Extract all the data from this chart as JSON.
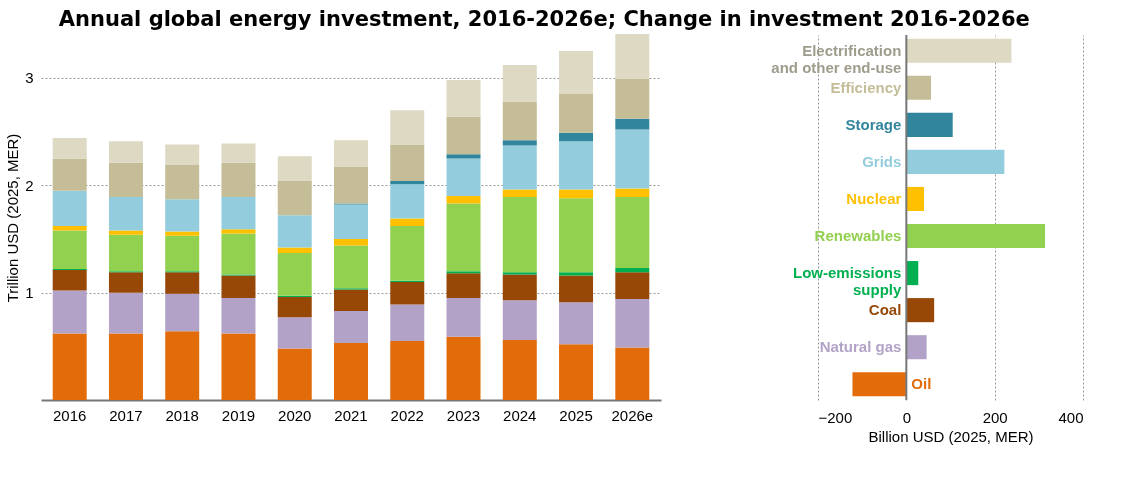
{
  "chart_data": [
    {
      "type": "bar",
      "title": "Annual global energy investment, 2016-2026e; Change in investment 2016-2026e",
      "ylabel": "Trillion USD (2025, MER)",
      "stacked": true,
      "grid": "y",
      "categories": [
        "2016",
        "2017",
        "2018",
        "2019",
        "2020",
        "2021",
        "2022",
        "2023",
        "2024",
        "2025",
        "2026e"
      ],
      "ylim": [
        0,
        3.4
      ],
      "yticks": [
        1,
        2,
        3
      ],
      "series": [
        {
          "color": "#e36c0a",
          "values": [
            0.62,
            0.62,
            0.64,
            0.62,
            0.48,
            0.53,
            0.55,
            0.59,
            0.56,
            0.52,
            0.49
          ]
        },
        {
          "color": "#b3a2c7",
          "values": [
            0.4,
            0.38,
            0.35,
            0.33,
            0.29,
            0.3,
            0.34,
            0.36,
            0.37,
            0.39,
            0.45
          ]
        },
        {
          "color": "#974806",
          "values": [
            0.19,
            0.19,
            0.2,
            0.21,
            0.19,
            0.2,
            0.21,
            0.23,
            0.24,
            0.25,
            0.25
          ]
        },
        {
          "color": "#00b050",
          "values": [
            0.01,
            0.01,
            0.01,
            0.01,
            0.01,
            0.01,
            0.01,
            0.02,
            0.02,
            0.03,
            0.04
          ]
        },
        {
          "color": "#92d050",
          "values": [
            0.36,
            0.34,
            0.33,
            0.38,
            0.4,
            0.4,
            0.51,
            0.63,
            0.7,
            0.69,
            0.66
          ]
        },
        {
          "color": "#ffc000",
          "values": [
            0.04,
            0.04,
            0.04,
            0.04,
            0.05,
            0.06,
            0.07,
            0.07,
            0.07,
            0.08,
            0.08
          ]
        },
        {
          "color": "#93cddd",
          "values": [
            0.33,
            0.31,
            0.3,
            0.3,
            0.3,
            0.32,
            0.32,
            0.35,
            0.41,
            0.45,
            0.55
          ]
        },
        {
          "color": "#31859c",
          "values": [
            0.0,
            0.0,
            0.0,
            0.0,
            0.0,
            0.01,
            0.03,
            0.04,
            0.05,
            0.08,
            0.1
          ]
        },
        {
          "color": "#c4bd97",
          "values": [
            0.3,
            0.32,
            0.32,
            0.32,
            0.32,
            0.34,
            0.34,
            0.35,
            0.36,
            0.36,
            0.37
          ]
        },
        {
          "color": "#ddd9c3",
          "values": [
            0.19,
            0.2,
            0.19,
            0.18,
            0.23,
            0.25,
            0.32,
            0.34,
            0.34,
            0.4,
            0.42
          ]
        }
      ]
    },
    {
      "type": "bar",
      "orientation": "horizontal",
      "xlabel": "Billion USD (2025, MER)",
      "grid": "x",
      "tick_labels": "x",
      "categories": [
        "Electrification\nand other end-use",
        "Efficiency",
        "Storage",
        "Grids",
        "Nuclear",
        "Renewables",
        "Low-emissions\nsupply",
        "Coal",
        "Natural gas",
        "Oil"
      ],
      "values": [
        238,
        56,
        105,
        222,
        40,
        314,
        27,
        63,
        46,
        -122
      ],
      "colors": [
        "#ddd9c3",
        "#c4bd97",
        "#31859c",
        "#93cddd",
        "#ffc000",
        "#92d050",
        "#00b050",
        "#974806",
        "#b3a2c7",
        "#e36c0a"
      ],
      "xlim": [
        -200,
        400
      ],
      "xticks": [
        -200,
        0,
        200,
        400
      ]
    }
  ]
}
